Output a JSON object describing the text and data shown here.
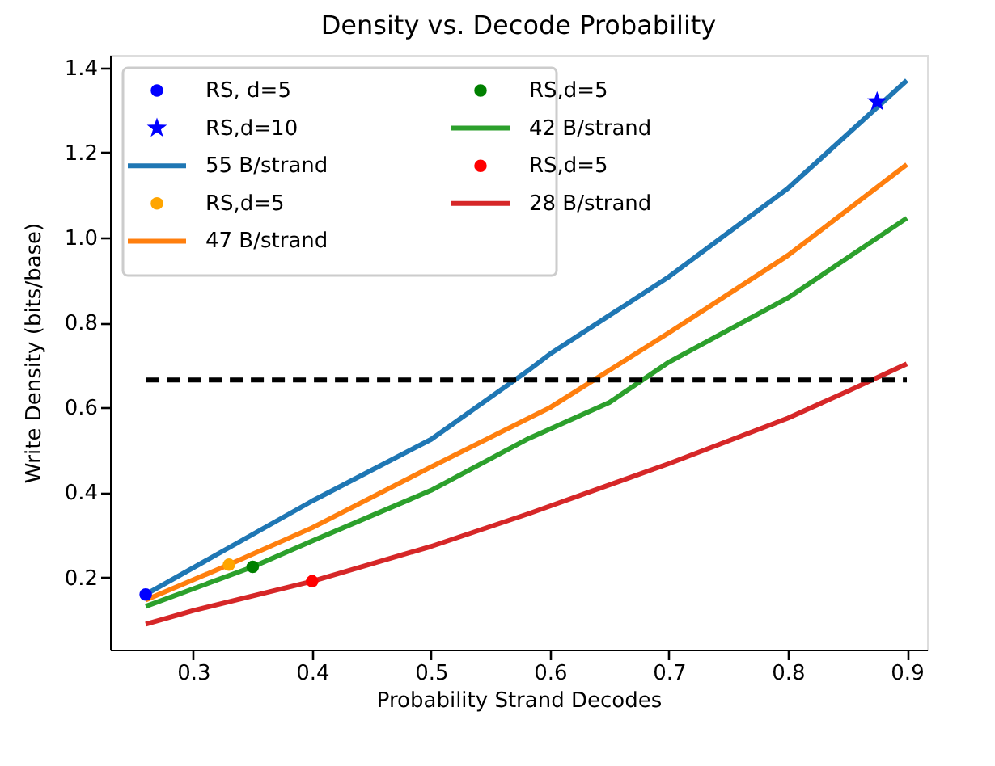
{
  "chart_data": {
    "type": "line",
    "title": "Density vs. Decode Probability",
    "xlabel": "Probability Strand Decodes",
    "ylabel": "Write Density (bits/base)",
    "xlim": [
      0.23,
      0.917
    ],
    "ylim": [
      0.03,
      1.43
    ],
    "xticks": [
      0.3,
      0.4,
      0.5,
      0.6,
      0.7,
      0.8,
      0.9
    ],
    "yticks": [
      0.2,
      0.4,
      0.6,
      0.8,
      {
        "value": 1,
        "label": "1.0"
      },
      1.2,
      1.4
    ],
    "grid": false,
    "legend": "top left",
    "series": [
      {
        "name": "RS, d=5",
        "type": "scatter",
        "marker": "circle",
        "color": "#0000ff",
        "x": [
          0.26
        ],
        "values": [
          0.16
        ]
      },
      {
        "name": "RS,d=10",
        "type": "scatter",
        "marker": "star",
        "color": "#0000ff",
        "x": [
          0.875
        ],
        "values": [
          1.32
        ]
      },
      {
        "name": "55 B/strand",
        "color": "#1f77b4",
        "x": [
          0.26,
          0.4,
          0.5,
          0.582,
          0.6,
          0.7,
          0.8,
          0.9
        ],
        "values": [
          0.16,
          0.38,
          0.525,
          0.688,
          0.726,
          0.908,
          1.116,
          1.37
        ]
      },
      {
        "name": "RS,d=5",
        "type": "scatter",
        "marker": "circle",
        "color": "#ffa500",
        "x": [
          0.33
        ],
        "values": [
          0.23
        ]
      },
      {
        "name": "47 B/strand",
        "color": "#ff7f0e",
        "x": [
          0.26,
          0.33,
          0.4,
          0.5,
          0.6,
          0.7,
          0.8,
          0.9
        ],
        "values": [
          0.147,
          0.23,
          0.317,
          0.46,
          0.6,
          0.776,
          0.958,
          1.172
        ]
      },
      {
        "name": "RS,d=5",
        "type": "scatter",
        "marker": "circle",
        "color": "#008000",
        "x": [
          0.35
        ],
        "values": [
          0.225
        ]
      },
      {
        "name": "42 B/strand",
        "color": "#2ca02c",
        "x": [
          0.26,
          0.35,
          0.4,
          0.5,
          0.582,
          0.65,
          0.7,
          0.8,
          0.9
        ],
        "values": [
          0.132,
          0.225,
          0.286,
          0.405,
          0.527,
          0.612,
          0.707,
          0.858,
          1.046
        ]
      },
      {
        "name": "RS,d=5",
        "type": "scatter",
        "marker": "circle",
        "color": "#ff0000",
        "x": [
          0.4
        ],
        "values": [
          0.191
        ]
      },
      {
        "name": "28 B/strand",
        "color": "#d62728",
        "x": [
          0.26,
          0.3,
          0.4,
          0.5,
          0.582,
          0.7,
          0.8,
          0.85,
          0.9
        ],
        "values": [
          0.09,
          0.122,
          0.191,
          0.273,
          0.35,
          0.468,
          0.575,
          0.638,
          0.703
        ]
      },
      {
        "color": "#000000",
        "line_style": "dashed",
        "x": [
          0.26,
          0.9
        ],
        "values": [
          0.665,
          0.665
        ]
      }
    ]
  }
}
